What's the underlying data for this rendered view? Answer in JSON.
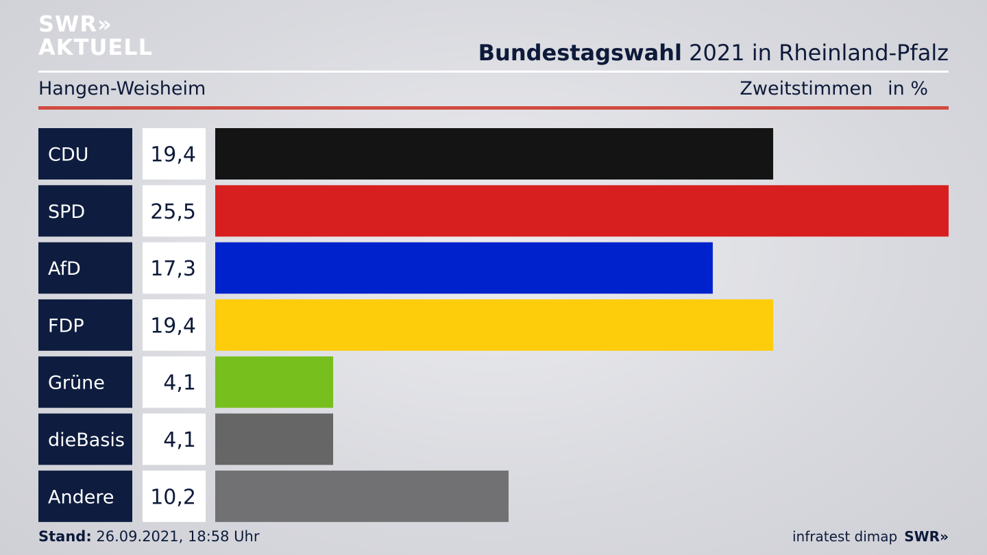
{
  "brand": {
    "line1": "SWR»",
    "line2": "AKTUELL"
  },
  "header": {
    "title_bold": "Bundestagswahl",
    "title_rest": " 2021 in Rheinland-Pfalz",
    "subtitle": "Hangen-Weisheim",
    "measure": "Zweitstimmen",
    "unit": "in %"
  },
  "footer": {
    "stand_label": "Stand:",
    "stand_value": " 26.09.2021, 18:58 Uhr",
    "source": "infratest dimap",
    "brand": "SWR»"
  },
  "colors": {
    "label_bg": "#0e1d3f",
    "value_bg": "#ffffff",
    "accent_red": "#d24a3f"
  },
  "chart_data": {
    "type": "bar",
    "orientation": "horizontal",
    "categories": [
      "CDU",
      "SPD",
      "AfD",
      "FDP",
      "Grüne",
      "dieBasis",
      "Andere"
    ],
    "values": [
      19.4,
      25.5,
      17.3,
      19.4,
      4.1,
      4.1,
      10.2
    ],
    "value_labels": [
      "19,4",
      "25,5",
      "17,3",
      "19,4",
      "4,1",
      "4,1",
      "10,2"
    ],
    "colors": [
      "#141414",
      "#d81f1f",
      "#0022cc",
      "#fdcc0a",
      "#77bf1d",
      "#666666",
      "#717173"
    ],
    "xlim": [
      0,
      25.5
    ]
  }
}
